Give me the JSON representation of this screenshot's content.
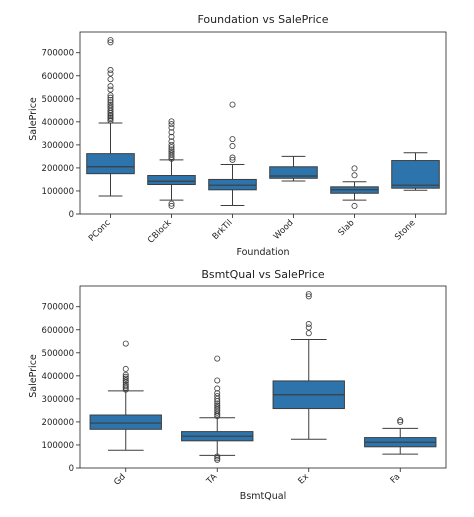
{
  "chart_data": [
    {
      "type": "box",
      "title": "Foundation vs SalePrice",
      "xlabel": "Foundation",
      "ylabel": "SalePrice",
      "ylim": [
        0,
        790000
      ],
      "yticks": [
        0,
        100000,
        200000,
        300000,
        400000,
        500000,
        600000,
        700000
      ],
      "ytick_labels": [
        "0",
        "100000",
        "200000",
        "300000",
        "400000",
        "500000",
        "600000",
        "700000"
      ],
      "box_color": "#2d74ac",
      "categories": [
        "PConc",
        "CBlock",
        "BrkTil",
        "Wood",
        "Slab",
        "Stone"
      ],
      "boxes": [
        {
          "category": "PConc",
          "whislo": 78000,
          "q1": 175000,
          "med": 205000,
          "q3": 262000,
          "whishi": 395000,
          "fliers": [
            405000,
            412000,
            418000,
            425000,
            430000,
            438000,
            445000,
            452000,
            460000,
            468000,
            475000,
            485000,
            495000,
            505000,
            515000,
            540000,
            555000,
            585000,
            610000,
            625000,
            745000,
            755000
          ]
        },
        {
          "category": "CBlock",
          "whislo": 60000,
          "q1": 128000,
          "med": 142000,
          "q3": 167000,
          "whishi": 235000,
          "fliers": [
            35000,
            45000,
            240000,
            248000,
            256000,
            264000,
            272000,
            280000,
            290000,
            300000,
            315000,
            335000,
            355000,
            375000,
            390000,
            402000
          ]
        },
        {
          "category": "BrkTil",
          "whislo": 37000,
          "q1": 105000,
          "med": 125000,
          "q3": 150000,
          "whishi": 215000,
          "fliers": [
            235000,
            245000,
            295000,
            325000,
            475000
          ]
        },
        {
          "category": "Wood",
          "whislo": 143000,
          "q1": 155000,
          "med": 165000,
          "q3": 205000,
          "whishi": 250000,
          "fliers": []
        },
        {
          "category": "Slab",
          "whislo": 60000,
          "q1": 90000,
          "med": 105000,
          "q3": 118000,
          "whishi": 140000,
          "fliers": [
            35000,
            168000,
            198000
          ]
        },
        {
          "category": "Stone",
          "whislo": 103000,
          "q1": 112000,
          "med": 125000,
          "q3": 232000,
          "whishi": 266000,
          "fliers": []
        }
      ]
    },
    {
      "type": "box",
      "title": "BsmtQual vs SalePrice",
      "xlabel": "BsmtQual",
      "ylabel": "SalePrice",
      "ylim": [
        0,
        790000
      ],
      "yticks": [
        0,
        100000,
        200000,
        300000,
        400000,
        500000,
        600000,
        700000
      ],
      "ytick_labels": [
        "0",
        "100000",
        "200000",
        "300000",
        "400000",
        "500000",
        "600000",
        "700000"
      ],
      "box_color": "#2d74ac",
      "categories": [
        "Gd",
        "TA",
        "Ex",
        "Fa"
      ],
      "boxes": [
        {
          "category": "Gd",
          "whislo": 77000,
          "q1": 168000,
          "med": 195000,
          "q3": 230000,
          "whishi": 335000,
          "fliers": [
            340000,
            348000,
            355000,
            362000,
            372000,
            380000,
            388000,
            396000,
            405000,
            430000,
            540000
          ]
        },
        {
          "category": "TA",
          "whislo": 55000,
          "q1": 118000,
          "med": 138000,
          "q3": 158000,
          "whishi": 218000,
          "fliers": [
            35000,
            42000,
            50000,
            225000,
            232000,
            240000,
            248000,
            256000,
            264000,
            272000,
            280000,
            290000,
            300000,
            312000,
            325000,
            345000,
            380000,
            475000
          ]
        },
        {
          "category": "Ex",
          "whislo": 125000,
          "q1": 258000,
          "med": 318000,
          "q3": 378000,
          "whishi": 558000,
          "fliers": [
            585000,
            610000,
            625000,
            745000,
            755000
          ]
        },
        {
          "category": "Fa",
          "whislo": 60000,
          "q1": 92000,
          "med": 112000,
          "q3": 132000,
          "whishi": 172000,
          "fliers": [
            200000,
            207000
          ]
        }
      ]
    }
  ]
}
